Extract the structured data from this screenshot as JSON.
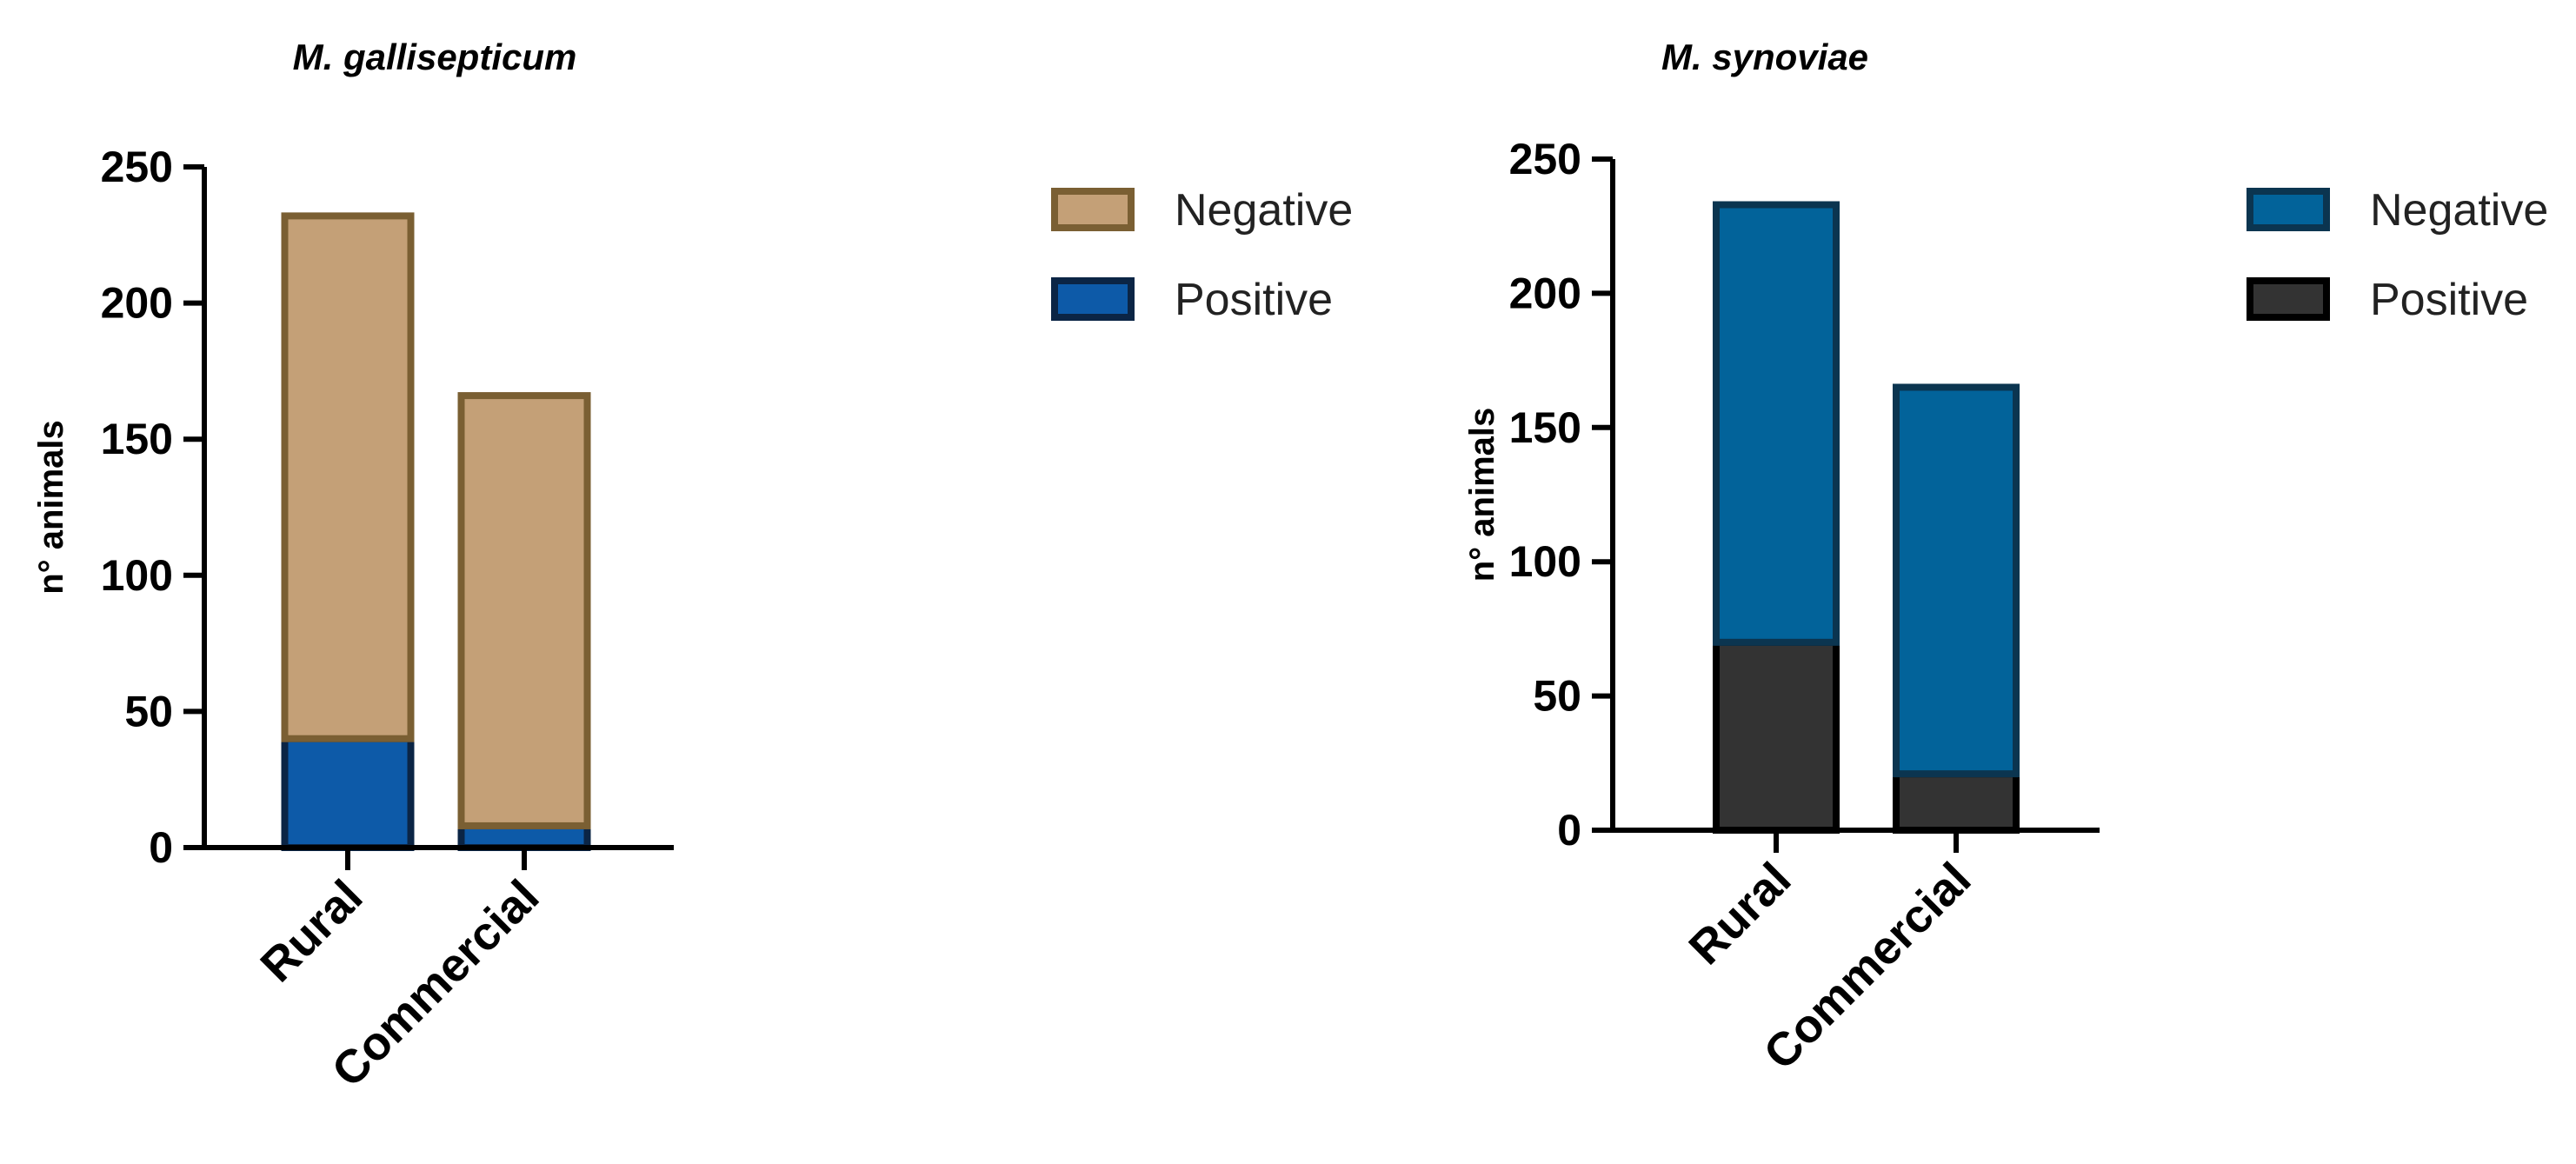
{
  "chart_data": [
    {
      "type": "bar",
      "stacked": true,
      "title": "M. gallisepticum",
      "xlabel": "",
      "ylabel": "n° animals",
      "ylim": [
        0,
        250
      ],
      "yticks": [
        0,
        50,
        100,
        150,
        200,
        250
      ],
      "categories": [
        "Rural",
        "Commercial"
      ],
      "series": [
        {
          "name": "Positive",
          "values": [
            40,
            8
          ],
          "color": "#0d5aa8",
          "stroke": "#0b2545"
        },
        {
          "name": "Negative",
          "values": [
            192,
            158
          ],
          "color": "#c4a077",
          "stroke": "#7a5f33"
        }
      ],
      "legend": [
        "Negative",
        "Positive"
      ],
      "legend_position": "right"
    },
    {
      "type": "bar",
      "stacked": true,
      "title": "M. synoviae",
      "xlabel": "",
      "ylabel": "n° animals",
      "ylim": [
        0,
        250
      ],
      "yticks": [
        0,
        50,
        100,
        150,
        200,
        250
      ],
      "categories": [
        "Rural",
        "Commercial"
      ],
      "series": [
        {
          "name": "Positive",
          "values": [
            70,
            21
          ],
          "color": "#333333",
          "stroke": "#000000"
        },
        {
          "name": "Negative",
          "values": [
            163,
            144
          ],
          "color": "#02639a",
          "stroke": "#0b3550"
        }
      ],
      "legend": [
        "Negative",
        "Positive"
      ],
      "legend_position": "right"
    }
  ]
}
